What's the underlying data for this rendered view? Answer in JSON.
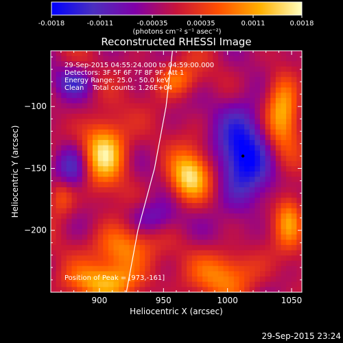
{
  "colorbar": {
    "ticks": [
      "-0.0018",
      "-0.0011",
      "-0.00035",
      "0.00035",
      "0.0011",
      "0.0018"
    ],
    "unit_label": "(photons cm⁻² s⁻¹ asec⁻²)"
  },
  "annotations": {
    "time_range": "29-Sep-2015 04:55:24.000 to 04:59:00.000",
    "detectors": "Detectors: 3F 5F 6F 7F 8F 9F, Att 1",
    "energy": "Energy Range: 25.0 - 50.0 keV",
    "clean": "Clean    Total counts: 1.26E+04",
    "peak": "Position of Peak = [973,-161]"
  },
  "footer_timestamp": "29-Sep-2015 23:24",
  "chart_data": {
    "type": "heatmap",
    "title": "Reconstructed RHESSI Image",
    "xlabel": "Heliocentric X (arcsec)",
    "ylabel": "Heliocentric Y (arcsec)",
    "xlim": [
      862,
      1058
    ],
    "ylim": [
      -250,
      -55
    ],
    "xticks": [
      900,
      950,
      1000,
      1050
    ],
    "yticks": [
      -100,
      -150,
      -200
    ],
    "clim": [
      -0.0018,
      0.0018
    ],
    "peak": [
      973,
      -161
    ],
    "colormap": [
      "#0000ff",
      "#4a2fbf",
      "#8000a8",
      "#c8143a",
      "#ff5000",
      "#ffb000",
      "#ffffc0"
    ],
    "limb_line": [
      [
        921,
        -250
      ],
      [
        930,
        -200
      ],
      [
        943,
        -150
      ],
      [
        952,
        -100
      ],
      [
        957,
        -55
      ]
    ],
    "sources": [
      {
        "x": 904,
        "y": -136,
        "sx": 12,
        "sy": 18,
        "amp": 0.0018
      },
      {
        "x": 970,
        "y": -157,
        "sx": 11,
        "sy": 14,
        "amp": 0.00175
      },
      {
        "x": 1043,
        "y": -104,
        "sx": 9,
        "sy": 22,
        "amp": 0.0014
      },
      {
        "x": 1048,
        "y": -190,
        "sx": 8,
        "sy": 16,
        "amp": 0.0012
      },
      {
        "x": 917,
        "y": -215,
        "sx": 16,
        "sy": 14,
        "amp": 0.0012
      },
      {
        "x": 1000,
        "y": -235,
        "sx": 18,
        "sy": 14,
        "amp": 0.0011
      },
      {
        "x": 905,
        "y": -242,
        "sx": 22,
        "sy": 10,
        "amp": 0.0012
      },
      {
        "x": 870,
        "y": -172,
        "sx": 8,
        "sy": 12,
        "amp": 0.001
      },
      {
        "x": 960,
        "y": -78,
        "sx": 12,
        "sy": 10,
        "amp": 0.001
      },
      {
        "x": 1012,
        "y": -140,
        "sx": 14,
        "sy": 30,
        "amp": -0.0016
      },
      {
        "x": 878,
        "y": -150,
        "sx": 10,
        "sy": 14,
        "amp": -0.0012
      },
      {
        "x": 940,
        "y": -190,
        "sx": 14,
        "sy": 10,
        "amp": -0.0008
      },
      {
        "x": 880,
        "y": -80,
        "sx": 10,
        "sy": 8,
        "amp": -0.0009
      }
    ]
  }
}
